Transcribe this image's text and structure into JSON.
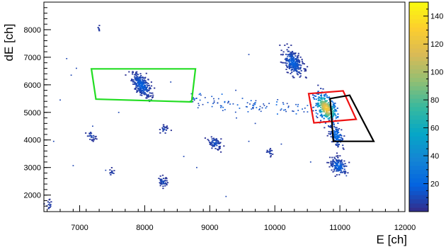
{
  "chart_data": {
    "type": "heatmap",
    "xlabel": "E [ch]",
    "ylabel": "dE [ch]",
    "xlim": [
      6450,
      12000
    ],
    "ylim": [
      1400,
      9000
    ],
    "x_ticks": [
      "7000",
      "8000",
      "9000",
      "10000",
      "11000",
      "12000"
    ],
    "x_tick_values": [
      7000,
      8000,
      9000,
      10000,
      11000,
      12000
    ],
    "y_ticks": [
      "2000",
      "3000",
      "4000",
      "5000",
      "6000",
      "7000",
      "8000"
    ],
    "y_tick_values": [
      2000,
      3000,
      4000,
      5000,
      6000,
      7000,
      8000
    ],
    "colorbar": {
      "range": [
        0,
        150
      ],
      "ticks": [
        "20",
        "40",
        "60",
        "80",
        "100",
        "120",
        "140"
      ],
      "tick_values": [
        20,
        40,
        60,
        80,
        100,
        120,
        140
      ],
      "palette": [
        "#352a87",
        "#0363e1",
        "#1485d4",
        "#06a7c6",
        "#38b99e",
        "#92bf73",
        "#d9ba56",
        "#fcce2e",
        "#f9fb0e"
      ]
    },
    "clusters": [
      {
        "x": 7950,
        "y": 5990,
        "sx": 75,
        "sy": 220,
        "rho": -0.55,
        "n": 260,
        "peak": 18
      },
      {
        "x": 10280,
        "y": 6800,
        "sx": 75,
        "sy": 230,
        "rho": -0.5,
        "n": 260,
        "peak": 18
      },
      {
        "x": 10790,
        "y": 5150,
        "sx": 85,
        "sy": 260,
        "rho": -0.5,
        "n": 320,
        "peak": 150
      },
      {
        "x": 10950,
        "y": 4150,
        "sx": 55,
        "sy": 200,
        "rho": -0.4,
        "n": 110,
        "peak": 25
      },
      {
        "x": 10980,
        "y": 3050,
        "sx": 65,
        "sy": 150,
        "rho": -0.3,
        "n": 150,
        "peak": 20
      },
      {
        "x": 9080,
        "y": 3880,
        "sx": 50,
        "sy": 110,
        "rho": -0.3,
        "n": 70,
        "peak": 12
      },
      {
        "x": 8280,
        "y": 2480,
        "sx": 35,
        "sy": 100,
        "rho": -0.3,
        "n": 45,
        "peak": 10
      },
      {
        "x": 8300,
        "y": 4380,
        "sx": 30,
        "sy": 80,
        "rho": -0.2,
        "n": 25,
        "peak": 8
      },
      {
        "x": 7180,
        "y": 4150,
        "sx": 35,
        "sy": 90,
        "rho": -0.2,
        "n": 25,
        "peak": 8
      },
      {
        "x": 7500,
        "y": 2800,
        "sx": 25,
        "sy": 70,
        "rho": -0.2,
        "n": 12,
        "peak": 6
      },
      {
        "x": 9920,
        "y": 3550,
        "sx": 35,
        "sy": 80,
        "rho": 0,
        "n": 18,
        "peak": 6
      },
      {
        "x": 6530,
        "y": 1650,
        "sx": 30,
        "sy": 80,
        "rho": 0,
        "n": 15,
        "peak": 6
      },
      {
        "x": 7290,
        "y": 8000,
        "sx": 15,
        "sy": 90,
        "rho": 0,
        "n": 6,
        "peak": 4
      }
    ],
    "band": {
      "x_from": 8700,
      "x_to": 10700,
      "y_from": 5450,
      "y_to": 5050,
      "n": 110,
      "spread_y": 150
    },
    "scatter_points": [
      [
        6800,
        6950
      ],
      [
        6870,
        6350
      ],
      [
        6950,
        6600
      ],
      [
        6600,
        3950
      ],
      [
        6900,
        3070
      ],
      [
        7200,
        4500
      ],
      [
        7400,
        2900
      ],
      [
        8600,
        3400
      ],
      [
        8800,
        3000
      ],
      [
        9250,
        1950
      ],
      [
        9600,
        3950
      ],
      [
        10550,
        3200
      ],
      [
        9600,
        7100
      ],
      [
        8400,
        6100
      ],
      [
        9400,
        5800
      ],
      [
        7600,
        5000
      ],
      [
        6700,
        5450
      ],
      [
        9700,
        4600
      ],
      [
        10100,
        3850
      ],
      [
        11100,
        2700
      ]
    ],
    "gates": [
      {
        "color": "#22dd22",
        "points": [
          [
            7180,
            6580
          ],
          [
            8780,
            6580
          ],
          [
            8720,
            5380
          ],
          [
            7250,
            5480
          ]
        ]
      },
      {
        "color": "#ee1111",
        "points": [
          [
            10520,
            5680
          ],
          [
            11050,
            5780
          ],
          [
            11250,
            4750
          ],
          [
            10600,
            4620
          ]
        ]
      },
      {
        "color": "#000000",
        "points": [
          [
            10850,
            5500
          ],
          [
            11150,
            5620
          ],
          [
            11520,
            3950
          ],
          [
            10900,
            3950
          ]
        ]
      }
    ]
  }
}
